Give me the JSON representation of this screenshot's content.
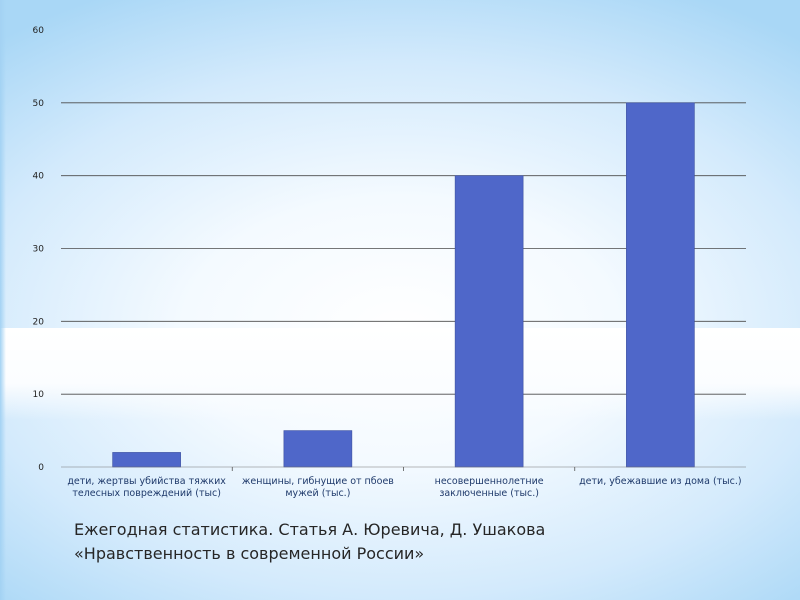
{
  "chart_data": {
    "type": "bar",
    "categories": [
      [
        "дети, жертвы убийства тяжких",
        "телесных повреждений (тыс)"
      ],
      [
        "женщины, гибнущие от пбоев",
        "мужей (тыс.)"
      ],
      [
        "несовершеннолетние",
        "заключенные (тыс.)"
      ],
      [
        "дети, убежавшие из дома (тыс.)"
      ]
    ],
    "values": [
      2,
      5,
      40,
      50
    ],
    "ylim": [
      0,
      60
    ],
    "yticks": [
      "0",
      "10",
      "20",
      "30",
      "40",
      "50",
      "60"
    ],
    "grid": true,
    "bar_color": "#4f67c9"
  },
  "caption": {
    "line1": "Ежегодная статистика. Статья А. Юревича, Д. Ушакова",
    "line2": "«Нравственность в современной России»"
  }
}
